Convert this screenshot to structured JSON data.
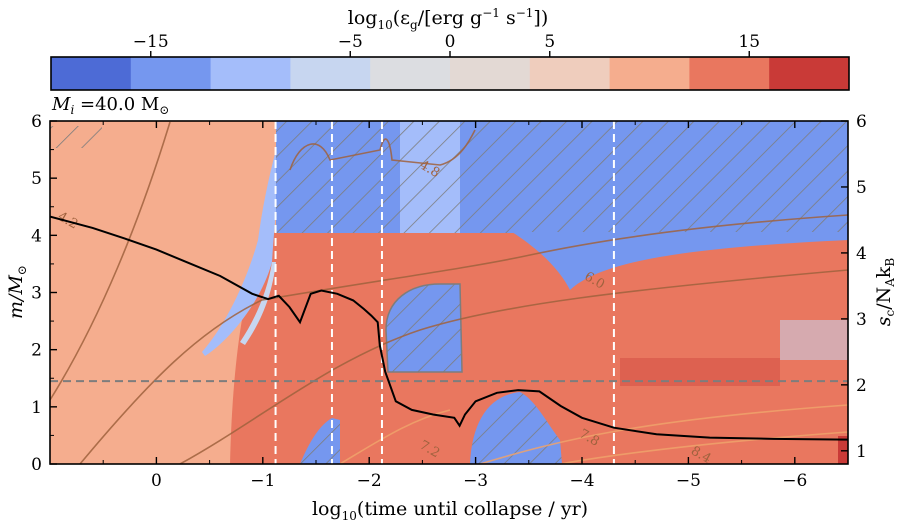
{
  "chart_data": {
    "type": "heatmap",
    "colorbar": {
      "label_main": "log",
      "label_sub": "10",
      "label_rest": "(ε",
      "label_g": "g",
      "label_units": "/[erg g",
      "label_exp1": "−1",
      "label_s": " s",
      "label_exp2": "−1",
      "label_close": "])",
      "ticks": [
        {
          "value": -15,
          "label": "−15"
        },
        {
          "value": -5,
          "label": "−5"
        },
        {
          "value": 0,
          "label": "0"
        },
        {
          "value": 5,
          "label": "5"
        },
        {
          "value": 15,
          "label": "15"
        }
      ],
      "range": [
        -20,
        20
      ],
      "bins": 10,
      "colors": [
        "#4d6bd6",
        "#7597ef",
        "#a4bdfa",
        "#c7d6f0",
        "#dcdde1",
        "#e3d9d4",
        "#efcdbd",
        "#f5ad8e",
        "#e9775f",
        "#c93a37"
      ]
    },
    "annotation_mass": "M",
    "annotation_i": "i",
    "annotation_value": " =40.0 M",
    "annotation_sun": "⊙",
    "xlabel": "log",
    "xlabel_sub": "10",
    "xlabel_rest": "(time until collapse / yr)",
    "ylabel": "m/M",
    "ylabel_sun": "⊙",
    "y2label": "s",
    "y2label_sub": "c",
    "y2label_rest": "/N",
    "y2label_A": "A",
    "y2label_k": "k",
    "y2label_B": "B",
    "xlim": [
      1.0,
      -6.5
    ],
    "ylim": [
      0,
      6
    ],
    "y2lim": [
      0.8,
      6.0
    ],
    "xticks": [
      {
        "value": 0,
        "label": "0"
      },
      {
        "value": -1,
        "label": "−1"
      },
      {
        "value": -2,
        "label": "−2"
      },
      {
        "value": -3,
        "label": "−3"
      },
      {
        "value": -4,
        "label": "−4"
      },
      {
        "value": -5,
        "label": "−5"
      },
      {
        "value": -6,
        "label": "−6"
      }
    ],
    "yticks": [
      0,
      1,
      2,
      3,
      4,
      5,
      6
    ],
    "y2ticks": [
      1,
      2,
      3,
      4,
      5,
      6
    ],
    "vlines": [
      -1.12,
      -1.65,
      -2.12,
      -4.3
    ],
    "hline": 1.45,
    "contour_labels": [
      {
        "text": "4.2",
        "x": 0.85,
        "y": 4.2
      },
      {
        "text": "4.8",
        "x": -2.55,
        "y": 5.1
      },
      {
        "text": "6.0",
        "x": -4.1,
        "y": 3.15
      },
      {
        "text": "7.2",
        "x": -2.55,
        "y": 0.2
      },
      {
        "text": "7.8",
        "x": -4.05,
        "y": 0.4
      },
      {
        "text": "8.4",
        "x": -5.1,
        "y": 0.1
      }
    ],
    "entropy_curve": {
      "name": "s_c",
      "x": [
        1.0,
        0.6,
        0.3,
        0.0,
        -0.3,
        -0.6,
        -0.9,
        -1.05,
        -1.15,
        -1.25,
        -1.35,
        -1.45,
        -1.55,
        -1.7,
        -1.85,
        -1.95,
        -2.02,
        -2.08,
        -2.1,
        -2.15,
        -2.25,
        -2.4,
        -2.6,
        -2.8,
        -2.85,
        -2.9,
        -3.0,
        -3.2,
        -3.4,
        -3.6,
        -3.8,
        -4.0,
        -4.3,
        -4.7,
        -5.2,
        -5.8,
        -6.5
      ],
      "y": [
        4.55,
        4.38,
        4.22,
        4.05,
        3.85,
        3.65,
        3.38,
        3.3,
        3.35,
        3.18,
        2.95,
        3.38,
        3.43,
        3.38,
        3.28,
        3.15,
        3.05,
        2.95,
        2.6,
        2.2,
        1.75,
        1.62,
        1.55,
        1.5,
        1.38,
        1.55,
        1.75,
        1.88,
        1.92,
        1.9,
        1.68,
        1.5,
        1.35,
        1.25,
        1.2,
        1.18,
        1.17
      ]
    }
  }
}
